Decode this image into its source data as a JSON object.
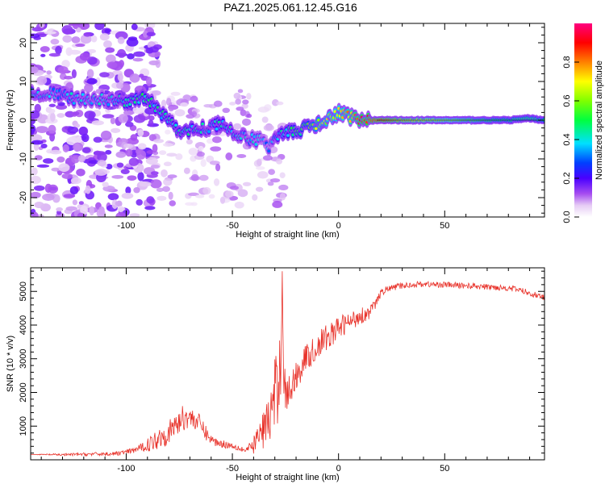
{
  "title": "PAZ1.2025.061.12.45.G16",
  "colorbar": {
    "label": "Normalized spectral amplitude",
    "ticks": [
      "0.0",
      "0.2",
      "0.4",
      "0.6",
      "0.8"
    ],
    "tick_values": [
      0.0,
      0.2,
      0.4,
      0.6,
      0.8
    ],
    "range": [
      0,
      1
    ],
    "colormap": "white-violet-blue-cyan-green-yellow-red-magenta"
  },
  "chart_data": [
    {
      "type": "heatmap",
      "xlabel": "Height of straight line (km)",
      "ylabel": "Frequency (Hz)",
      "xlim": [
        -145,
        97
      ],
      "ylim": [
        -25,
        25
      ],
      "xticks": [
        -100,
        -50,
        0,
        50
      ],
      "yticks": [
        -20,
        -10,
        0,
        10,
        20
      ],
      "grid": false,
      "ridge": {
        "x": [
          -143,
          -135,
          -125,
          -115,
          -105,
          -98,
          -92,
          -87,
          -82,
          -77,
          -72,
          -67,
          -62,
          -57,
          -52,
          -47,
          -42,
          -37,
          -33,
          -30,
          -26,
          -20,
          -15,
          -10,
          -5,
          0,
          5,
          10,
          15,
          20,
          30,
          40,
          50,
          60,
          70,
          80,
          90,
          97
        ],
        "freq": [
          7,
          7,
          5.5,
          5.5,
          5,
          5,
          5.5,
          4,
          1,
          -2,
          -3,
          -2,
          -2,
          -1,
          -2,
          -4,
          -5,
          -5,
          -7,
          -4,
          -3,
          -3,
          -2,
          -1,
          0,
          2,
          1,
          0,
          0,
          0,
          0,
          0,
          0,
          0,
          0,
          0,
          0.5,
          0
        ],
        "amplitude": [
          0.3,
          0.28,
          0.3,
          0.28,
          0.3,
          0.35,
          0.38,
          0.34,
          0.35,
          0.33,
          0.35,
          0.33,
          0.3,
          0.34,
          0.32,
          0.3,
          0.28,
          0.27,
          0.24,
          0.3,
          0.35,
          0.4,
          0.45,
          0.55,
          0.6,
          0.65,
          0.7,
          0.8,
          0.85,
          0.88,
          0.75,
          0.7,
          0.65,
          0.58,
          0.52,
          0.48,
          0.5,
          0.45
        ]
      }
    },
    {
      "type": "line",
      "xlabel": "Height of straight line (km)",
      "ylabel": "SNR (10 * v/v)",
      "xlim": [
        -145,
        97
      ],
      "ylim": [
        0,
        5700
      ],
      "xticks": [
        -100,
        -50,
        0,
        50
      ],
      "yticks": [
        1000,
        2000,
        3000,
        4000,
        5000
      ],
      "grid": false,
      "series": [
        {
          "color": "#e8322a",
          "x": [
            -145,
            -130,
            -115,
            -105,
            -98,
            -93,
            -88,
            -84,
            -80,
            -77,
            -74,
            -71,
            -68,
            -65,
            -62,
            -59,
            -56,
            -53,
            -50,
            -47,
            -44,
            -41,
            -38,
            -35,
            -32,
            -30,
            -28,
            -27,
            -26.5,
            -26,
            -25.5,
            -25,
            -24,
            -22,
            -20,
            -18,
            -16,
            -14,
            -12,
            -10,
            -8,
            -6,
            -4,
            -2,
            0,
            2,
            4,
            6,
            8,
            10,
            12,
            14,
            16,
            18,
            20,
            22,
            25,
            28,
            31,
            35,
            40,
            45,
            50,
            55,
            60,
            65,
            70,
            75,
            80,
            85,
            90,
            95,
            97
          ],
          "y": [
            160,
            150,
            170,
            180,
            250,
            360,
            500,
            700,
            800,
            1000,
            1200,
            1300,
            1200,
            1050,
            750,
            550,
            500,
            450,
            420,
            360,
            280,
            350,
            650,
            950,
            1300,
            1900,
            2400,
            3300,
            5600,
            3200,
            2400,
            2000,
            1900,
            2200,
            2500,
            2700,
            3000,
            3100,
            3200,
            3350,
            3500,
            3600,
            3700,
            3800,
            3900,
            4000,
            4050,
            4100,
            4200,
            4300,
            4300,
            4350,
            4500,
            4700,
            4950,
            5050,
            5100,
            5150,
            5170,
            5200,
            5220,
            5200,
            5200,
            5180,
            5170,
            5150,
            5130,
            5120,
            5100,
            5050,
            4950,
            4850,
            4800
          ],
          "noise": [
            0,
            40,
            50,
            60,
            80,
            120,
            250,
            350,
            350,
            400,
            400,
            350,
            300,
            280,
            200,
            150,
            120,
            110,
            100,
            90,
            120,
            200,
            400,
            600,
            900,
            1100,
            1200,
            1200,
            0,
            1100,
            900,
            700,
            500,
            500,
            450,
            450,
            400,
            400,
            400,
            400,
            400,
            400,
            380,
            360,
            350,
            330,
            320,
            300,
            280,
            260,
            240,
            200,
            170,
            140,
            110,
            100,
            90,
            90,
            90,
            90,
            90,
            90,
            90,
            90,
            90,
            90,
            90,
            90,
            90,
            90,
            90,
            90,
            90
          ]
        }
      ]
    }
  ]
}
